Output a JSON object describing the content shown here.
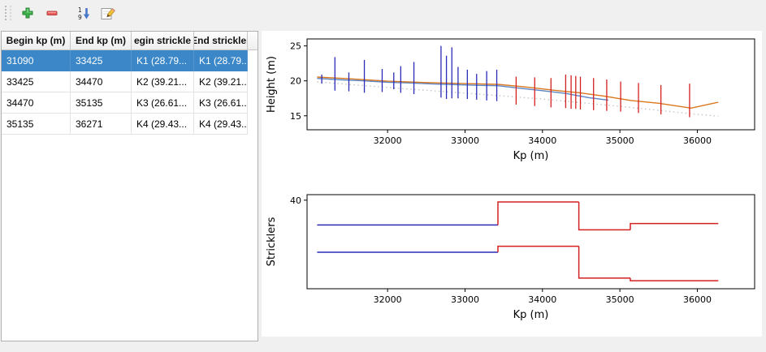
{
  "toolbar": {
    "buttons": [
      {
        "label": "add",
        "icon": "plus-icon"
      },
      {
        "label": "remove",
        "icon": "minus-icon"
      },
      {
        "label": "sort",
        "icon": "sort-1-9-icon"
      },
      {
        "label": "edit",
        "icon": "pencil-icon"
      }
    ]
  },
  "table": {
    "columns": [
      "Begin kp (m)",
      "End kp (m)",
      "egin strickle",
      "End strickler"
    ],
    "rows": [
      [
        "31090",
        "33425",
        "K1 (28.79...",
        "K1 (28.79..."
      ],
      [
        "33425",
        "34470",
        "K2 (39.21...",
        "K2 (39.21..."
      ],
      [
        "34470",
        "35135",
        "K3 (26.61...",
        "K3 (26.61..."
      ],
      [
        "35135",
        "36271",
        "K4 (29.43...",
        "K4 (29.43..."
      ]
    ],
    "selected_row": 0
  },
  "colors": {
    "selection": "#3b87c8",
    "window_bg": "#f0f0f0",
    "canvas": "#ffffff",
    "blue_series": "#2b2bb8",
    "red_series": "#d42020",
    "orange_series": "#d9771e"
  },
  "chart_data": [
    {
      "name": "height-profile-chart",
      "type": "line",
      "xlabel": "Kp (m)",
      "ylabel": "Height (m)",
      "xlim": [
        30960,
        36740
      ],
      "ylim": [
        13,
        26
      ],
      "xticks": [
        32000,
        33000,
        34000,
        35000,
        36000
      ],
      "yticks": [
        15,
        20,
        25
      ],
      "series": [
        {
          "name": "water-level-line",
          "color": "#5b84c4",
          "style": "solid",
          "points": [
            [
              31090,
              20.35
            ],
            [
              31400,
              20.15
            ],
            [
              31700,
              20.0
            ],
            [
              32000,
              19.8
            ],
            [
              32300,
              19.7
            ],
            [
              32600,
              19.55
            ],
            [
              32900,
              19.45
            ],
            [
              33200,
              19.35
            ],
            [
              33425,
              19.3
            ],
            [
              33700,
              18.95
            ],
            [
              34000,
              18.6
            ],
            [
              34300,
              18.2
            ],
            [
              34600,
              17.6
            ],
            [
              34850,
              17.25
            ]
          ]
        },
        {
          "name": "bed-profile-line",
          "color": "#d9771e",
          "style": "solid",
          "points": [
            [
              31090,
              20.55
            ],
            [
              31500,
              20.3
            ],
            [
              32000,
              19.95
            ],
            [
              32500,
              19.75
            ],
            [
              33000,
              19.6
            ],
            [
              33425,
              19.5
            ],
            [
              33800,
              19.1
            ],
            [
              34200,
              18.6
            ],
            [
              34470,
              18.3
            ],
            [
              34800,
              17.8
            ],
            [
              35135,
              17.2
            ],
            [
              35500,
              16.8
            ],
            [
              35920,
              16.1
            ],
            [
              36271,
              16.95
            ]
          ]
        },
        {
          "name": "reference-dotted-line",
          "color": "#c4c4c4",
          "style": "dotted",
          "points": [
            [
              31090,
              19.85
            ],
            [
              32000,
              19.05
            ],
            [
              33000,
              18.25
            ],
            [
              34000,
              17.4
            ],
            [
              35000,
              16.35
            ],
            [
              36000,
              15.2
            ],
            [
              36271,
              14.95
            ]
          ]
        }
      ],
      "spikes": [
        {
          "name": "cross-sections-upstream",
          "color": "#2b2bb8",
          "lines": [
            [
              31150,
              19.6,
              20.9
            ],
            [
              31320,
              18.6,
              23.4
            ],
            [
              31500,
              18.5,
              21.2
            ],
            [
              31700,
              18.3,
              23.0
            ],
            [
              31930,
              18.4,
              21.7
            ],
            [
              32080,
              18.8,
              21.2
            ],
            [
              32170,
              18.3,
              22.1
            ],
            [
              32340,
              18.1,
              22.7
            ],
            [
              32690,
              17.6,
              25.0
            ],
            [
              32760,
              17.4,
              23.6
            ],
            [
              32830,
              17.5,
              24.8
            ],
            [
              32910,
              17.5,
              22.0
            ],
            [
              33030,
              17.4,
              21.6
            ],
            [
              33150,
              17.3,
              21.0
            ],
            [
              33280,
              17.2,
              21.4
            ],
            [
              33410,
              17.1,
              21.6
            ]
          ]
        },
        {
          "name": "cross-sections-downstream",
          "color": "#d42020",
          "lines": [
            [
              33660,
              16.6,
              20.6
            ],
            [
              33900,
              16.4,
              20.5
            ],
            [
              34110,
              16.2,
              20.4
            ],
            [
              34300,
              16.1,
              20.9
            ],
            [
              34370,
              16.0,
              20.8
            ],
            [
              34430,
              16.0,
              20.7
            ],
            [
              34490,
              15.9,
              20.6
            ],
            [
              34660,
              15.8,
              20.4
            ],
            [
              34830,
              15.7,
              20.2
            ],
            [
              35010,
              15.6,
              19.9
            ],
            [
              35240,
              15.4,
              19.7
            ],
            [
              35530,
              15.2,
              19.4
            ],
            [
              35900,
              14.8,
              19.6
            ]
          ]
        }
      ]
    },
    {
      "name": "stricklers-chart",
      "type": "step",
      "xlabel": "Kp (m)",
      "ylabel": "Stricklers",
      "xlim": [
        30960,
        36740
      ],
      "ylim": [
        0,
        42.5
      ],
      "xticks": [
        32000,
        33000,
        34000,
        35000,
        36000
      ],
      "yticks": [
        40
      ],
      "step_series": [
        {
          "name": "main-channel-stricklers",
          "segments": [
            {
              "x0": 31090,
              "x1": 33425,
              "value": 28.79,
              "color": "#2b2bb8"
            },
            {
              "x0": 33425,
              "x1": 34470,
              "value": 39.21,
              "color": "#d42020"
            },
            {
              "x0": 34470,
              "x1": 35135,
              "value": 26.61,
              "color": "#d42020"
            },
            {
              "x0": 35135,
              "x1": 36271,
              "value": 29.43,
              "color": "#d42020"
            }
          ]
        },
        {
          "name": "floodplain-stricklers",
          "segments": [
            {
              "x0": 31090,
              "x1": 33425,
              "value": 16.5,
              "color": "#2b2bb8"
            },
            {
              "x0": 33425,
              "x1": 34470,
              "value": 19.2,
              "color": "#d42020"
            },
            {
              "x0": 34470,
              "x1": 35135,
              "value": 4.8,
              "color": "#d42020"
            },
            {
              "x0": 35135,
              "x1": 36271,
              "value": 3.6,
              "color": "#d42020"
            }
          ]
        }
      ]
    }
  ]
}
